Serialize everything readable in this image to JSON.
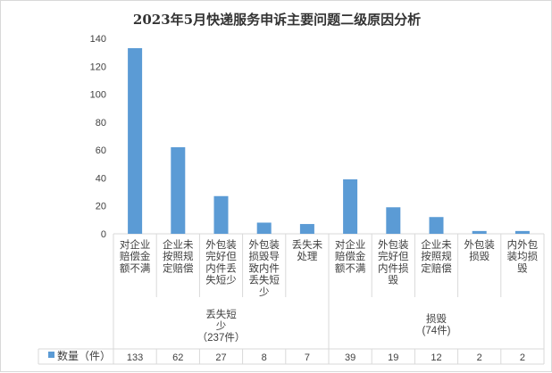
{
  "chart_data": {
    "type": "bar",
    "title": "2023年5月快递服务申诉主要问题二级原因分析",
    "ylim": [
      0,
      140
    ],
    "yticks": [
      0,
      20,
      40,
      60,
      80,
      100,
      120,
      140
    ],
    "grid": false,
    "bar_color": "#5B9BD5",
    "categories": [
      {
        "label_lines": [
          "对企业",
          "赔偿金",
          "额不满"
        ],
        "value": 133,
        "group": 0
      },
      {
        "label_lines": [
          "企业未",
          "按照规",
          "定赔偿"
        ],
        "value": 62,
        "group": 0
      },
      {
        "label_lines": [
          "外包装",
          "完好但",
          "内件丢",
          "失短少"
        ],
        "value": 27,
        "group": 0
      },
      {
        "label_lines": [
          "外包装",
          "损毁导",
          "致内件",
          "丢失短",
          "少"
        ],
        "value": 8,
        "group": 0
      },
      {
        "label_lines": [
          "丢失未",
          "处理"
        ],
        "value": 7,
        "group": 0
      },
      {
        "label_lines": [
          "对企业",
          "赔偿金",
          "额不满"
        ],
        "value": 39,
        "group": 1
      },
      {
        "label_lines": [
          "外包装",
          "完好但",
          "内件损",
          "毁"
        ],
        "value": 19,
        "group": 1
      },
      {
        "label_lines": [
          "企业未",
          "按照规",
          "定赔偿"
        ],
        "value": 12,
        "group": 1
      },
      {
        "label_lines": [
          "外包装",
          "损毁"
        ],
        "value": 2,
        "group": 1
      },
      {
        "label_lines": [
          "内外包",
          "装均损",
          "毁"
        ],
        "value": 2,
        "group": 1
      }
    ],
    "groups": [
      {
        "label_lines": [
          "丢失短",
          "少",
          "（237件）"
        ]
      },
      {
        "label_lines": [
          "损毁",
          "(74件)"
        ]
      }
    ],
    "series": [
      {
        "name": "数量（件）"
      }
    ]
  }
}
